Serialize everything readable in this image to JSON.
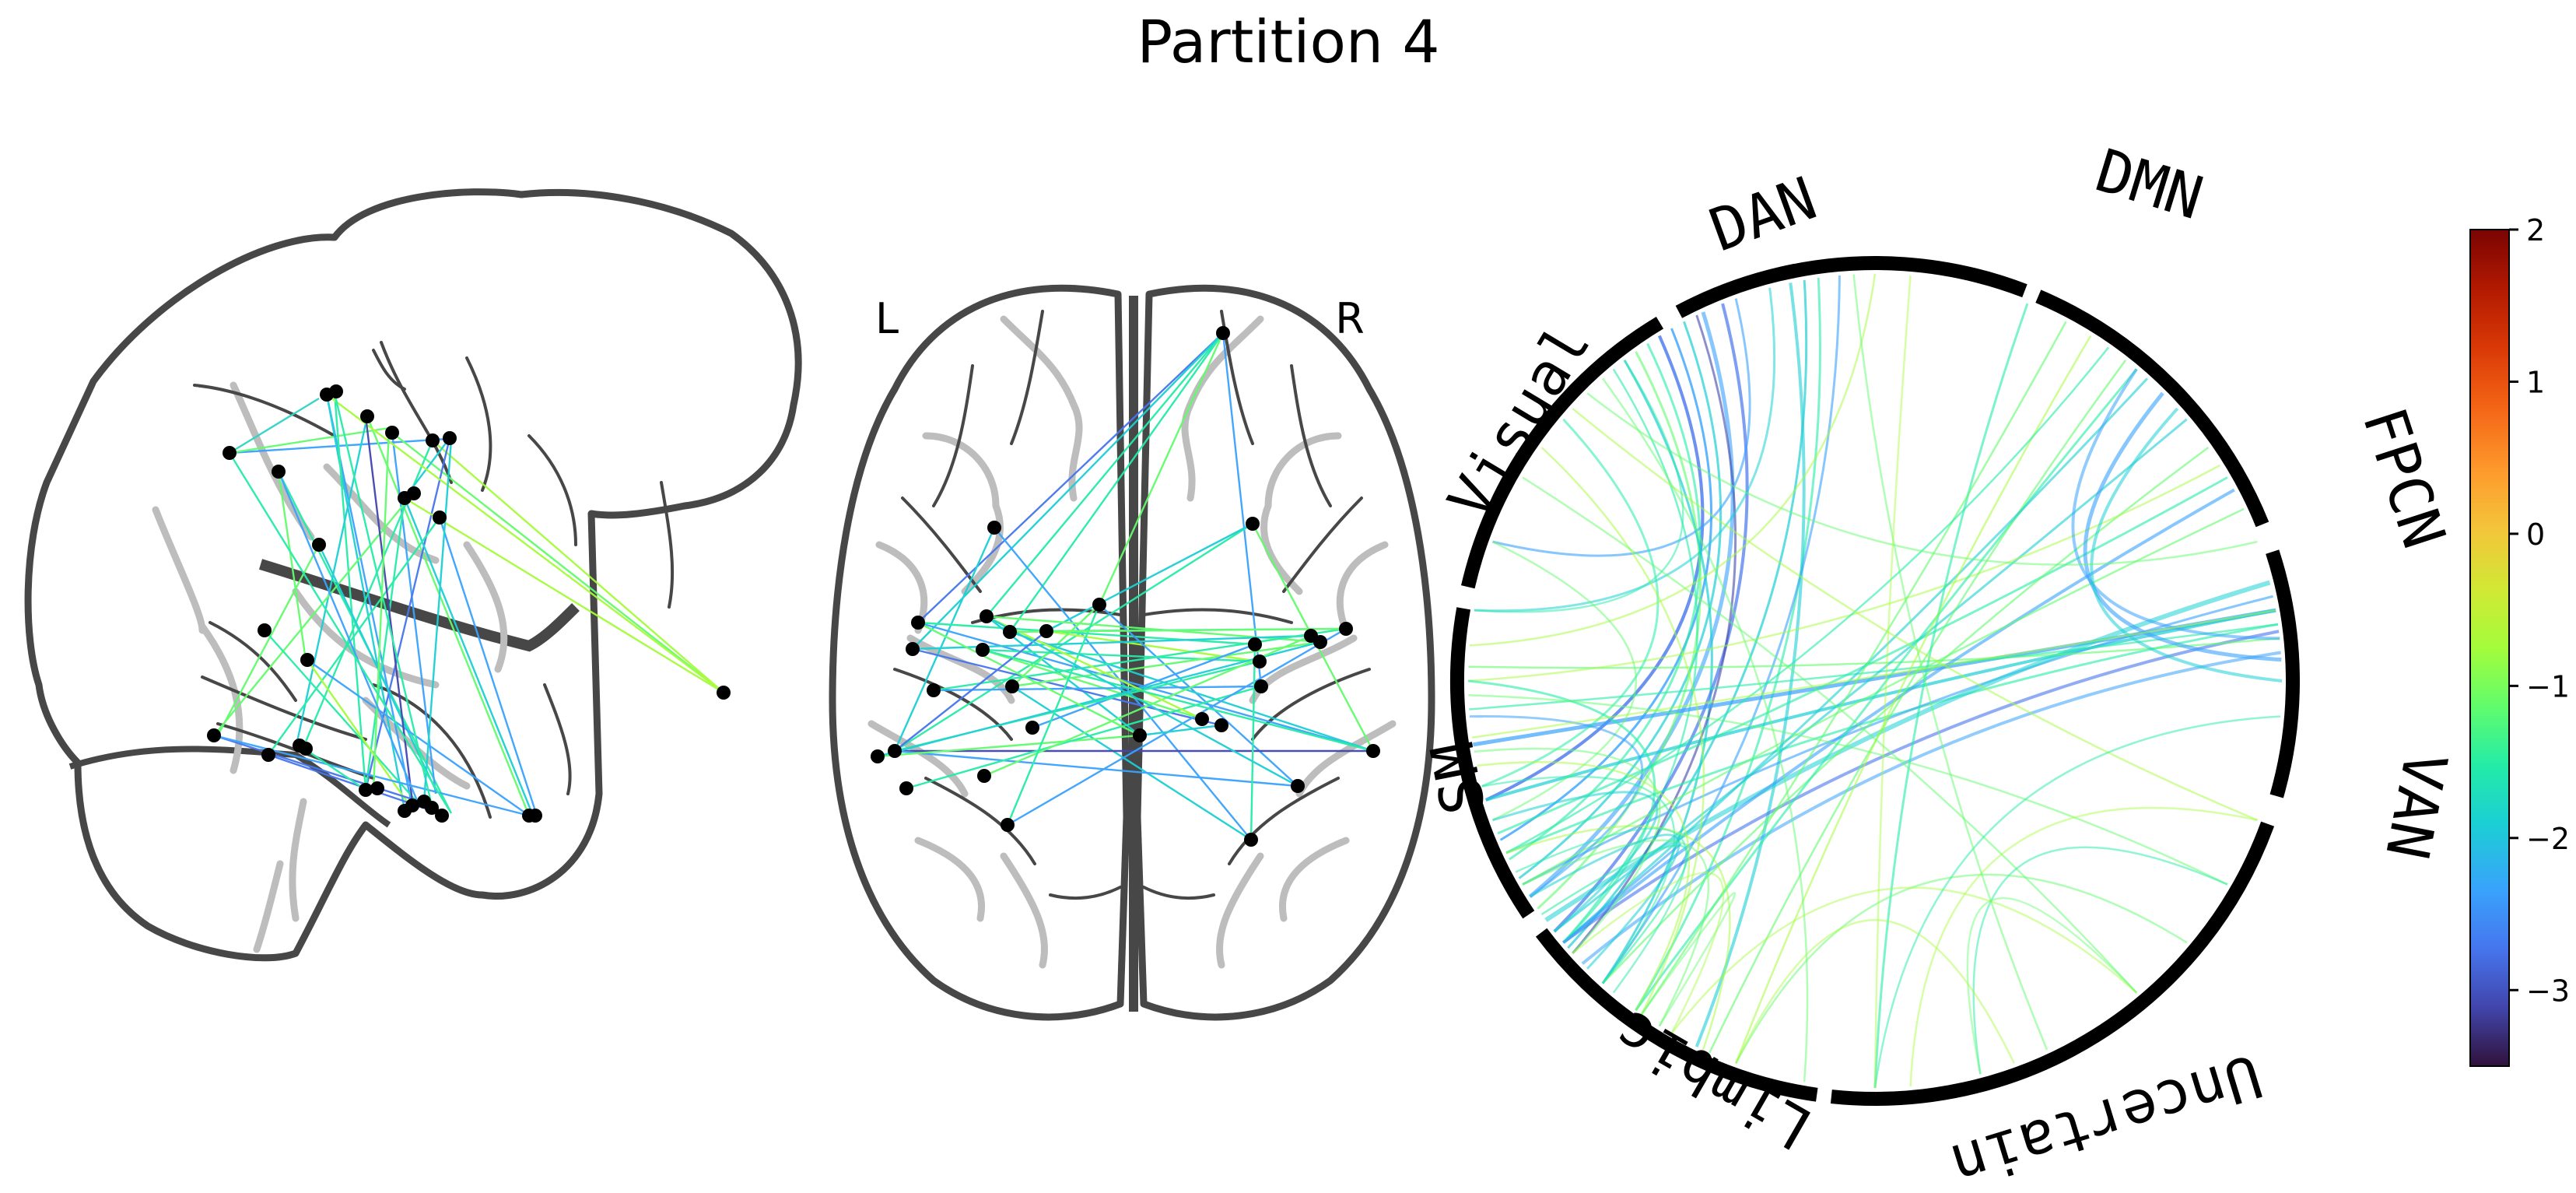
{
  "title": "Partition 4",
  "glass_brain": {
    "axial_labels": {
      "left": "L",
      "right": "R"
    }
  },
  "chord": {
    "networks": [
      "DMN",
      "FPCN",
      "VAN",
      "Uncertain",
      "Limbic",
      "SM",
      "Visual",
      "DAN"
    ]
  },
  "colorbar": {
    "colormap": "turbo",
    "min": -3.5,
    "max": 2,
    "ticks": [
      "2",
      "1",
      "0",
      "−1",
      "−2",
      "−3"
    ]
  },
  "colors": {
    "brain_outline": "#474747",
    "sulci_gray": "#bdbdbd",
    "node": "#000000",
    "ring": "#000000"
  }
}
